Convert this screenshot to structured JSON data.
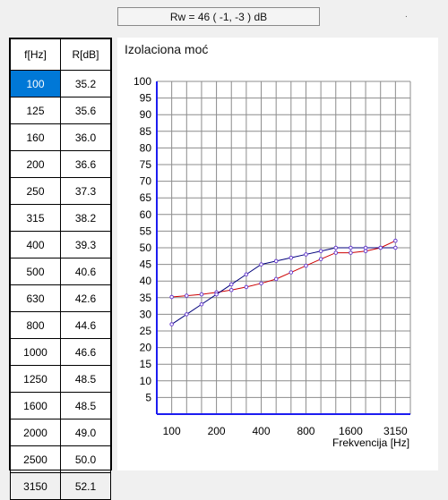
{
  "header": {
    "rw_text": "Rw = 46 ( -1, -3 ) dB",
    "mark": "."
  },
  "table": {
    "col1": "f[Hz]",
    "col2": "R[dB]",
    "selected_row": 0,
    "rows": [
      [
        "100",
        "35.2"
      ],
      [
        "125",
        "35.6"
      ],
      [
        "160",
        "36.0"
      ],
      [
        "200",
        "36.6"
      ],
      [
        "250",
        "37.3"
      ],
      [
        "315",
        "38.2"
      ],
      [
        "400",
        "39.3"
      ],
      [
        "500",
        "40.6"
      ],
      [
        "630",
        "42.6"
      ],
      [
        "800",
        "44.6"
      ],
      [
        "1000",
        "46.6"
      ],
      [
        "1250",
        "48.5"
      ],
      [
        "1600",
        "48.5"
      ],
      [
        "2000",
        "49.0"
      ],
      [
        "2500",
        "50.0"
      ],
      [
        "3150",
        "52.1"
      ]
    ]
  },
  "chart_data": {
    "type": "line",
    "title": "Izolaciona moć",
    "xlabel": "Frekvencija [Hz]",
    "ylabel": "",
    "ylim": [
      0,
      100
    ],
    "y_ticks": [
      "5",
      "10",
      "15",
      "20",
      "25",
      "30",
      "35",
      "40",
      "45",
      "50",
      "55",
      "60",
      "65",
      "70",
      "75",
      "80",
      "85",
      "90",
      "95",
      "100"
    ],
    "x": [
      "100",
      "125",
      "160",
      "200",
      "250",
      "315",
      "400",
      "500",
      "630",
      "800",
      "1000",
      "1250",
      "1600",
      "2000",
      "2500",
      "3150"
    ],
    "x_tick_labels": [
      "100",
      "200",
      "400",
      "800",
      "1600",
      "3150"
    ],
    "series": [
      {
        "color": "#cc0000",
        "marker_color": "#6a3fd0",
        "values": [
          35.2,
          35.6,
          36.0,
          36.6,
          37.3,
          38.2,
          39.3,
          40.6,
          42.6,
          44.6,
          46.6,
          48.5,
          48.5,
          49.0,
          50.0,
          52.1
        ]
      },
      {
        "color": "#00007a",
        "marker_color": "#6a3fd0",
        "values": [
          27,
          30,
          33,
          36,
          39,
          42,
          45,
          46,
          47,
          48,
          49,
          50,
          50,
          50,
          50,
          50
        ]
      }
    ],
    "grid": true
  }
}
